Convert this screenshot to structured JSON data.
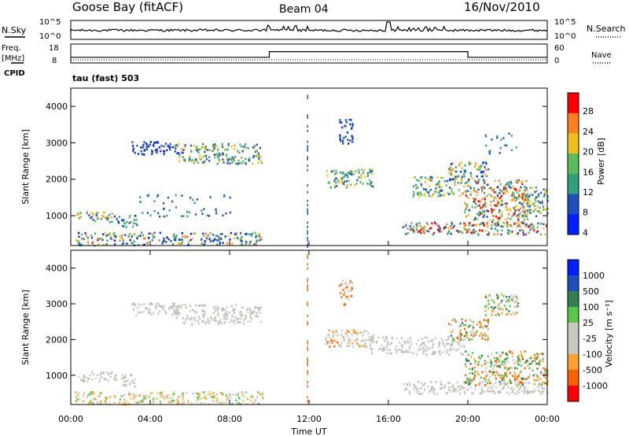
{
  "header": {
    "station": "Goose Bay (fitACF)",
    "beam": "Beam 04",
    "date": "16/Nov/2010"
  },
  "top_strip": {
    "left_label": "N.Sky",
    "right_label": "N.Search",
    "left_ticks": [
      "10^5",
      "10^0"
    ],
    "right_ticks": [
      "10^5",
      "10^0"
    ]
  },
  "freq_strip": {
    "left_label_1": "Freq.",
    "left_label_2": "[MHz]",
    "cpid_label": "CPID",
    "left_ticks": [
      "18",
      "8"
    ],
    "right_label": "Nave",
    "right_ticks": [
      "60",
      "0"
    ],
    "cpid_text": "tau (fast) 503",
    "freq_step": {
      "x": [
        0,
        10,
        10,
        20,
        20
      ],
      "y": [
        11,
        11,
        14,
        14,
        11
      ]
    }
  },
  "x_axis": {
    "label": "Time UT",
    "ticks": [
      "00:00",
      "04:00",
      "08:00",
      "12:00",
      "16:00",
      "20:00",
      "00:00"
    ],
    "range": [
      0,
      24
    ]
  },
  "chart_data": [
    {
      "type": "heatmap",
      "name": "power",
      "ylabel": "Slant Range [km]",
      "ylim": [
        180,
        4500
      ],
      "yticks": [
        "1000",
        "2000",
        "3000",
        "4000"
      ],
      "colorbar": {
        "label": "Power [dB]",
        "ticks": [
          "28",
          "24",
          "20",
          "16",
          "12",
          "8",
          "4"
        ],
        "colors": [
          "#0020ff",
          "#2050c0",
          "#30a080",
          "#5cbc5c",
          "#f0c020",
          "#ff8020",
          "#ff0000"
        ]
      },
      "regions": [
        {
          "t": [
            0.2,
            3.3
          ],
          "r": [
            200,
            560
          ],
          "c": "multi"
        },
        {
          "t": [
            0.2,
            2.2
          ],
          "r": [
            850,
            1120
          ],
          "c": "green-orange"
        },
        {
          "t": [
            2.2,
            3.3
          ],
          "r": [
            700,
            1050
          ],
          "c": "green-blue"
        },
        {
          "t": [
            3.3,
            8.0
          ],
          "r": [
            1000,
            1600
          ],
          "c": "sparse"
        },
        {
          "t": [
            3.3,
            9.7
          ],
          "r": [
            220,
            560
          ],
          "c": "multi"
        },
        {
          "t": [
            3.0,
            5.5
          ],
          "r": [
            2700,
            3050
          ],
          "c": "blue"
        },
        {
          "t": [
            5.2,
            9.6
          ],
          "r": [
            2450,
            3000
          ],
          "c": "blue-green"
        },
        {
          "t": [
            12.8,
            15.2
          ],
          "r": [
            1800,
            2300
          ],
          "c": "blue-green"
        },
        {
          "t": [
            13.5,
            14.2
          ],
          "r": [
            3000,
            3700
          ],
          "c": "blue"
        },
        {
          "t": [
            17.2,
            19.8
          ],
          "r": [
            1550,
            2100
          ],
          "c": "blue-green"
        },
        {
          "t": [
            16.7,
            24.0
          ],
          "r": [
            500,
            850
          ],
          "c": "blue-red"
        },
        {
          "t": [
            19.8,
            23.0
          ],
          "r": [
            750,
            2000
          ],
          "c": "orange-red"
        },
        {
          "t": [
            19.0,
            21.0
          ],
          "r": [
            2000,
            2500
          ],
          "c": "multi"
        },
        {
          "t": [
            20.8,
            22.5
          ],
          "r": [
            2700,
            3300
          ],
          "c": "sparse"
        },
        {
          "t": [
            22.5,
            24.0
          ],
          "r": [
            1000,
            1800
          ],
          "c": "blue-green"
        }
      ]
    },
    {
      "type": "heatmap",
      "name": "velocity",
      "ylabel": "Slant Range [km]",
      "ylim": [
        180,
        4500
      ],
      "yticks": [
        "1000",
        "2000",
        "3000",
        "4000"
      ],
      "colorbar": {
        "label": "Velocity [m s⁻¹]",
        "ticks": [
          "1000",
          "500",
          "100",
          "25",
          "-25",
          "-100",
          "-500",
          "-1000"
        ],
        "colors": [
          "#ff0000",
          "#ff6000",
          "#ffa030",
          "#c8c8c0",
          "#c8c8c0",
          "#58c848",
          "#308050",
          "#2050c0",
          "#0020ff"
        ]
      },
      "regions": [
        {
          "t": [
            0.2,
            3.3
          ],
          "r": [
            200,
            560
          ],
          "c": "ground"
        },
        {
          "t": [
            0.2,
            2.2
          ],
          "r": [
            850,
            1120
          ],
          "c": "grey"
        },
        {
          "t": [
            2.2,
            3.3
          ],
          "r": [
            700,
            1050
          ],
          "c": "grey"
        },
        {
          "t": [
            3.3,
            9.7
          ],
          "r": [
            220,
            560
          ],
          "c": "ground"
        },
        {
          "t": [
            3.0,
            5.5
          ],
          "r": [
            2700,
            3050
          ],
          "c": "grey"
        },
        {
          "t": [
            5.2,
            9.6
          ],
          "r": [
            2450,
            3000
          ],
          "c": "grey"
        },
        {
          "t": [
            12.8,
            15.2
          ],
          "r": [
            1800,
            2300
          ],
          "c": "grey-orange"
        },
        {
          "t": [
            13.5,
            14.2
          ],
          "r": [
            3000,
            3700
          ],
          "c": "orange"
        },
        {
          "t": [
            15.0,
            19.8
          ],
          "r": [
            1600,
            2100
          ],
          "c": "grey"
        },
        {
          "t": [
            16.7,
            24.0
          ],
          "r": [
            500,
            850
          ],
          "c": "grey"
        },
        {
          "t": [
            19.8,
            24.0
          ],
          "r": [
            750,
            1700
          ],
          "c": "green-orange"
        },
        {
          "t": [
            19.0,
            21.0
          ],
          "r": [
            2000,
            2600
          ],
          "c": "green-orange"
        },
        {
          "t": [
            20.8,
            22.5
          ],
          "r": [
            2700,
            3300
          ],
          "c": "green"
        }
      ]
    }
  ]
}
